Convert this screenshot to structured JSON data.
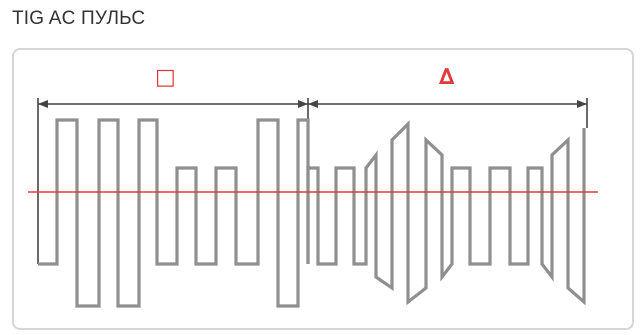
{
  "title": "TIG AC ПУЛЬС",
  "segments": [
    {
      "symbol": "□",
      "label_color": "#e23a3a"
    },
    {
      "symbol": "∆",
      "label_color": "#e23a3a"
    }
  ],
  "colors": {
    "waveform": "#8f8f8f",
    "dimension_lines": "#444444",
    "zero_axis": "#e23a3a",
    "panel_border": "#d6d6d6"
  }
}
